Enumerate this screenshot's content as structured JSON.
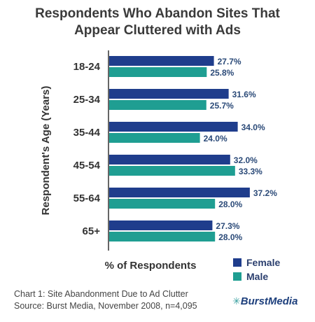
{
  "chart_data": {
    "type": "bar",
    "orientation": "horizontal",
    "title_lines": [
      "Respondents Who Abandon Sites That",
      "Appear Cluttered with Ads"
    ],
    "categories": [
      "18-24",
      "25-34",
      "35-44",
      "45-54",
      "55-64",
      "65+"
    ],
    "series": [
      {
        "name": "Female",
        "color": "#1f3d8c",
        "values": [
          27.7,
          31.6,
          34.0,
          32.0,
          37.2,
          27.3
        ]
      },
      {
        "name": "Male",
        "color": "#1f9e92",
        "values": [
          25.8,
          25.7,
          24.0,
          33.3,
          28.0,
          28.0
        ]
      }
    ],
    "value_suffix": "%",
    "xlabel": "% of Respondents",
    "ylabel": "Respondent's Age (Years)",
    "xlim": [
      0,
      40
    ],
    "grid": false,
    "legend_position": "bottom-right"
  },
  "caption": {
    "line1": "Chart 1: Site Abandonment Due to Ad Clutter",
    "line2": "Source: Burst Media, November 2008, n=4,095"
  },
  "brand": {
    "icon": "burst-icon",
    "name": "BurstMedia"
  }
}
